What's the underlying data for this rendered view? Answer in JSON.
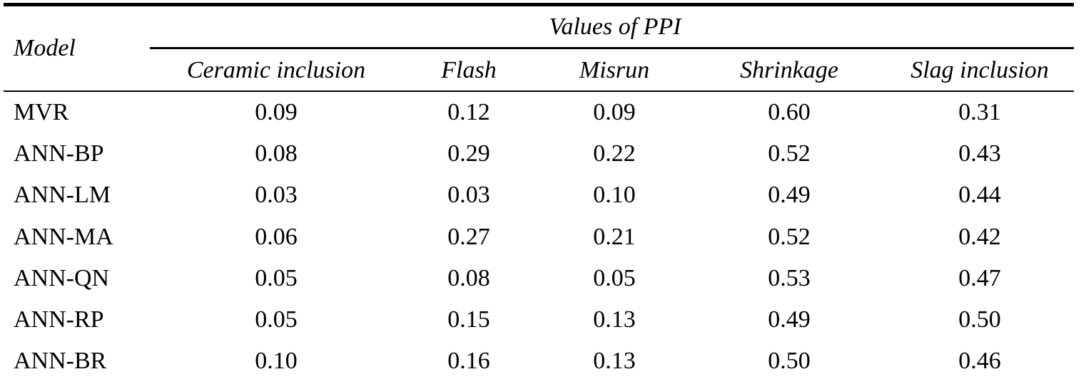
{
  "table": {
    "model_header": "Model",
    "group_header": "Values of PPI",
    "columns": [
      "Ceramic inclusion",
      "Flash",
      "Misrun",
      "Shrinkage",
      "Slag inclusion"
    ],
    "rows": [
      {
        "model": "MVR",
        "values": [
          "0.09",
          "0.12",
          "0.09",
          "0.60",
          "0.31"
        ]
      },
      {
        "model": "ANN-BP",
        "values": [
          "0.08",
          "0.29",
          "0.22",
          "0.52",
          "0.43"
        ]
      },
      {
        "model": "ANN-LM",
        "values": [
          "0.03",
          "0.03",
          "0.10",
          "0.49",
          "0.44"
        ]
      },
      {
        "model": "ANN-MA",
        "values": [
          "0.06",
          "0.27",
          "0.21",
          "0.52",
          "0.42"
        ]
      },
      {
        "model": "ANN-QN",
        "values": [
          "0.05",
          "0.08",
          "0.05",
          "0.53",
          "0.47"
        ]
      },
      {
        "model": "ANN-RP",
        "values": [
          "0.05",
          "0.15",
          "0.13",
          "0.49",
          "0.50"
        ]
      },
      {
        "model": "ANN-BR",
        "values": [
          "0.10",
          "0.16",
          "0.13",
          "0.50",
          "0.46"
        ]
      }
    ]
  }
}
